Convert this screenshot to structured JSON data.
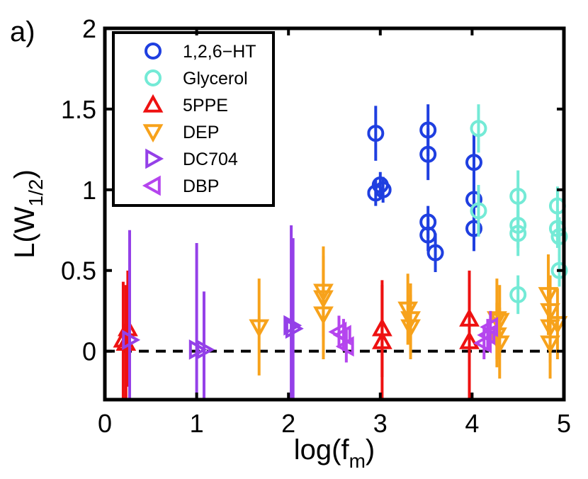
{
  "chart_data": {
    "type": "scatter",
    "panel_label": "a)",
    "xlabel": {
      "main": "log(f",
      "sub": "m",
      "close": ")"
    },
    "ylabel": {
      "main": "L(W",
      "sub": "1/2",
      "close": ")"
    },
    "xlim": [
      0,
      5
    ],
    "ylim": [
      -0.3,
      2
    ],
    "xticks": [
      0,
      1,
      2,
      3,
      4,
      5
    ],
    "xtick_labels": [
      "0",
      "1",
      "2",
      "3",
      "4",
      "5"
    ],
    "yticks": [
      0,
      0.5,
      1,
      1.5,
      2
    ],
    "ytick_labels": [
      "0",
      "0.5",
      "1",
      "1.5",
      "2"
    ],
    "reference_line": {
      "y": 0,
      "style": "dashed"
    },
    "legend_position": "top-left",
    "series": [
      {
        "name": "1,2,6−HT",
        "marker": "circle",
        "color": "#1f3fe0",
        "points": [
          {
            "x": 2.95,
            "y": 1.35,
            "err": 0.17
          },
          {
            "x": 2.95,
            "y": 0.98,
            "err": 0.08
          },
          {
            "x": 3.0,
            "y": 1.03,
            "err": 0.08
          },
          {
            "x": 3.03,
            "y": 1.0,
            "err": 0.08
          },
          {
            "x": 3.52,
            "y": 1.37,
            "err": 0.16
          },
          {
            "x": 3.52,
            "y": 1.22,
            "err": 0.16
          },
          {
            "x": 3.52,
            "y": 0.8,
            "err": 0.1
          },
          {
            "x": 3.52,
            "y": 0.72,
            "err": 0.1
          },
          {
            "x": 3.6,
            "y": 0.61,
            "err": 0.12
          },
          {
            "x": 4.02,
            "y": 1.17,
            "err": 0.18
          },
          {
            "x": 4.02,
            "y": 0.94,
            "err": 0.18
          },
          {
            "x": 4.02,
            "y": 0.76,
            "err": 0.14
          }
        ]
      },
      {
        "name": "Glycerol",
        "marker": "circle",
        "color": "#74ead6",
        "points": [
          {
            "x": 4.07,
            "y": 1.38,
            "err": 0.15
          },
          {
            "x": 4.07,
            "y": 0.87,
            "err": 0.16
          },
          {
            "x": 4.5,
            "y": 0.96,
            "err": 0.16
          },
          {
            "x": 4.5,
            "y": 0.78,
            "err": 0.14
          },
          {
            "x": 4.5,
            "y": 0.73,
            "err": 0.14
          },
          {
            "x": 4.5,
            "y": 0.35,
            "err": 0.12
          },
          {
            "x": 4.93,
            "y": 0.9,
            "err": 0.12
          },
          {
            "x": 4.93,
            "y": 0.76,
            "err": 0.12
          },
          {
            "x": 4.95,
            "y": 0.71,
            "err": 0.12
          },
          {
            "x": 4.95,
            "y": 0.5,
            "err": 0.1
          }
        ]
      },
      {
        "name": "5PPE",
        "marker": "triangle-up",
        "color": "#ee1111",
        "points": [
          {
            "x": 0.2,
            "y": 0.07,
            "err": 0.36
          },
          {
            "x": 0.23,
            "y": 0.05,
            "err": 0.36
          },
          {
            "x": 0.25,
            "y": 0.14,
            "err": 0.36
          },
          {
            "x": 3.02,
            "y": 0.14,
            "err": 0.3
          },
          {
            "x": 3.02,
            "y": 0.06,
            "err": 0.35
          },
          {
            "x": 3.97,
            "y": 0.2,
            "err": 0.3
          },
          {
            "x": 3.97,
            "y": 0.06,
            "err": 0.35
          }
        ]
      },
      {
        "name": "DEP",
        "marker": "triangle-down",
        "color": "#f7a21b",
        "points": [
          {
            "x": 1.68,
            "y": 0.15,
            "err": 0.3
          },
          {
            "x": 2.38,
            "y": 0.37,
            "err": 0.28
          },
          {
            "x": 2.38,
            "y": 0.23,
            "err": 0.28
          },
          {
            "x": 2.38,
            "y": 0.33,
            "err": 0.26
          },
          {
            "x": 3.3,
            "y": 0.26,
            "err": 0.22
          },
          {
            "x": 3.33,
            "y": 0.2,
            "err": 0.22
          },
          {
            "x": 3.33,
            "y": 0.15,
            "err": 0.2
          },
          {
            "x": 4.27,
            "y": 0.2,
            "err": 0.25
          },
          {
            "x": 4.27,
            "y": 0.1,
            "err": 0.2
          },
          {
            "x": 4.3,
            "y": 0.05,
            "err": 0.22
          },
          {
            "x": 4.3,
            "y": 0.19,
            "err": 0.22
          },
          {
            "x": 4.83,
            "y": 0.35,
            "err": 0.25
          },
          {
            "x": 4.85,
            "y": 0.25,
            "err": 0.22
          },
          {
            "x": 4.85,
            "y": 0.15,
            "err": 0.22
          },
          {
            "x": 4.85,
            "y": 0.05,
            "err": 0.22
          },
          {
            "x": 4.93,
            "y": 0.17,
            "err": 0.22
          }
        ]
      },
      {
        "name": "DC704",
        "marker": "triangle-right",
        "color": "#9440e8",
        "points": [
          {
            "x": 0.27,
            "y": 0.07,
            "err": 0.68
          },
          {
            "x": 1.0,
            "y": 0.01,
            "err": 0.66
          },
          {
            "x": 1.08,
            "y": 0.01,
            "err": 0.36
          },
          {
            "x": 2.03,
            "y": 0.16,
            "err": 0.62
          },
          {
            "x": 2.05,
            "y": 0.14,
            "err": 0.56
          }
        ]
      },
      {
        "name": "DBP",
        "marker": "triangle-left",
        "color": "#b545ee",
        "points": [
          {
            "x": 2.55,
            "y": 0.12,
            "err": 0.1
          },
          {
            "x": 2.6,
            "y": 0.1,
            "err": 0.1
          },
          {
            "x": 2.63,
            "y": 0.03,
            "err": 0.1
          },
          {
            "x": 4.13,
            "y": 0.05,
            "err": 0.1
          },
          {
            "x": 4.17,
            "y": 0.1,
            "err": 0.1
          },
          {
            "x": 4.2,
            "y": 0.15,
            "err": 0.1
          }
        ]
      }
    ]
  }
}
